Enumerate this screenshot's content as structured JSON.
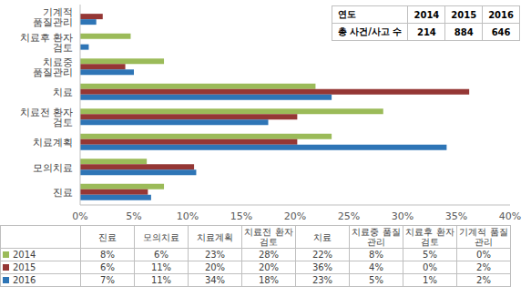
{
  "chart_data": {
    "type": "bar",
    "orientation": "horizontal",
    "grid": false,
    "categories": [
      "진료",
      "모의치료",
      "치료계획",
      "치료전 환자 검토",
      "치료",
      "치료중 품질관리",
      "치료후 환자 검토",
      "기계적 품질관리"
    ],
    "xlim": [
      0,
      40
    ],
    "xticks": [
      {
        "value": 0,
        "label": "0%"
      },
      {
        "value": 5,
        "label": "5%"
      },
      {
        "value": 10,
        "label": "10%"
      },
      {
        "value": 15,
        "label": "15%"
      },
      {
        "value": 20,
        "label": "20%"
      },
      {
        "value": 25,
        "label": "25%"
      },
      {
        "value": 30,
        "label": "30%"
      },
      {
        "value": 35,
        "label": "35%"
      },
      {
        "value": 40,
        "label": "40%"
      }
    ],
    "series": [
      {
        "name": "2014",
        "color": "#9bbb59",
        "values": [
          7.8,
          6.2,
          23.4,
          28.2,
          21.9,
          7.8,
          4.7,
          0
        ],
        "value_labels": [
          "8%",
          "6%",
          "23%",
          "28%",
          "22%",
          "8%",
          "5%",
          "0%"
        ]
      },
      {
        "name": "2015",
        "color": "#953735",
        "values": [
          6.3,
          10.6,
          20.2,
          20.2,
          36.2,
          4.2,
          0,
          2.1
        ],
        "value_labels": [
          "6%",
          "11%",
          "20%",
          "20%",
          "36%",
          "4%",
          "0%",
          "2%"
        ]
      },
      {
        "name": "2016",
        "color": "#2e75b6",
        "values": [
          6.6,
          10.8,
          34.1,
          17.5,
          23.4,
          5.0,
          0.8,
          1.5
        ],
        "value_labels": [
          "7%",
          "11%",
          "34%",
          "18%",
          "23%",
          "5%",
          "1%",
          "2%"
        ]
      }
    ]
  },
  "inset_table": {
    "header": [
      "연도",
      "2014",
      "2015",
      "2016"
    ],
    "rows": [
      [
        "총 사건/사고 수",
        214,
        884,
        646
      ]
    ]
  }
}
